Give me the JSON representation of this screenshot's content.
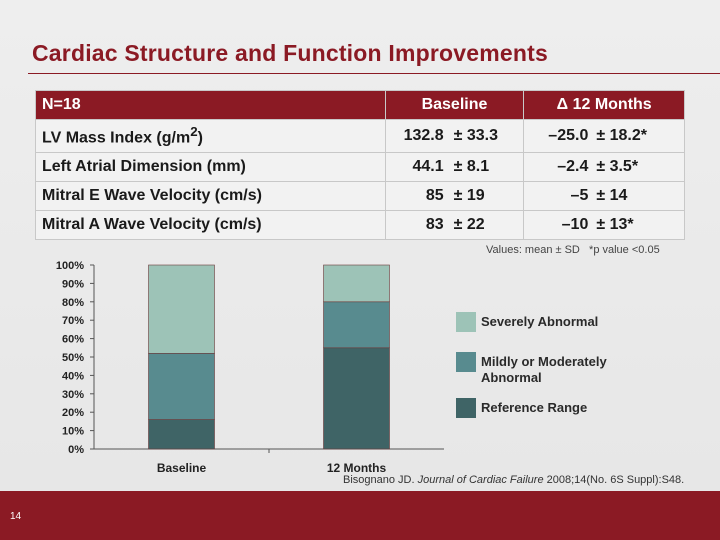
{
  "slide": {
    "title": "Cardiac Structure and Function Improvements",
    "page_number": "14"
  },
  "table": {
    "headers": [
      "N=18",
      "Baseline",
      "Δ 12 Months"
    ],
    "rows": [
      {
        "label": "LV Mass Index (g/m",
        "label_sup": "2",
        "label_tail": ")",
        "baseline": "132.8",
        "baseline_sd": "± 33.3",
        "delta": "–25.0",
        "delta_sd": "± 18.2*"
      },
      {
        "label": "Left Atrial Dimension (mm)",
        "baseline": "44.1",
        "baseline_sd": "± 8.1",
        "delta": "–2.4",
        "delta_sd": "± 3.5*"
      },
      {
        "label": "Mitral E Wave Velocity (cm/s)",
        "baseline": "85",
        "baseline_sd": "± 19",
        "delta": "–5",
        "delta_sd": "± 14"
      },
      {
        "label": "Mitral A Wave Velocity (cm/s)",
        "baseline": "83",
        "baseline_sd": "± 22",
        "delta": "–10",
        "delta_sd": "± 13*"
      }
    ]
  },
  "footnote": "Values: mean ± SD   *p value <0.05",
  "citation": {
    "authors": "Bisognano JD. ",
    "journal": "Journal of Cardiac Failure",
    "details": " 2008;14(No. 6S Suppl):S48."
  },
  "chart_data": {
    "type": "bar",
    "stacked": true,
    "categories": [
      "Baseline",
      "12 Months"
    ],
    "series": [
      {
        "name": "Reference Range",
        "values": [
          16,
          55
        ],
        "color": "#3f6466"
      },
      {
        "name": "Mildly or Moderately Abnormal",
        "values": [
          36,
          25
        ],
        "color": "#588b8f"
      },
      {
        "name": "Severely Abnormal",
        "values": [
          48,
          20
        ],
        "color": "#9dc3b7"
      }
    ],
    "ylim": [
      0,
      100
    ],
    "yticks": [
      "0%",
      "10%",
      "20%",
      "30%",
      "40%",
      "50%",
      "60%",
      "70%",
      "80%",
      "90%",
      "100%"
    ],
    "legend_position": "right",
    "grid": false
  }
}
